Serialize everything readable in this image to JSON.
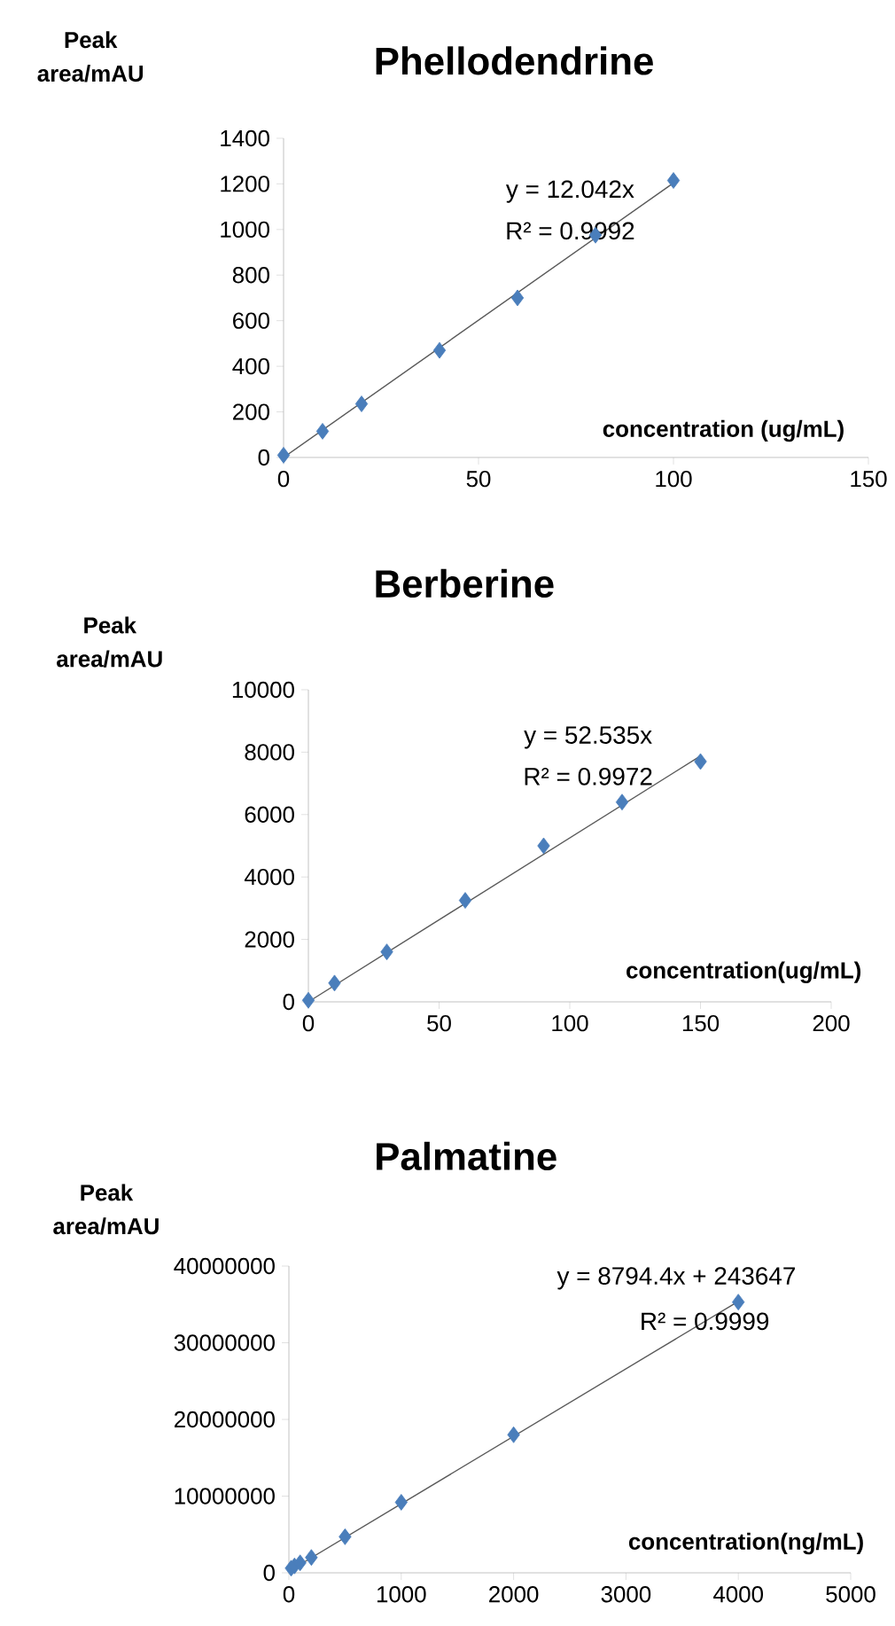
{
  "chart_data": [
    {
      "type": "scatter",
      "title": "Phellodendrine",
      "xlabel": "concentration (ug/mL)",
      "ylabel": "Peak area/mAU",
      "xlim": [
        0,
        150
      ],
      "xticks": [
        0,
        50,
        100,
        150
      ],
      "ylim": [
        0,
        1400
      ],
      "yticks": [
        0,
        200,
        400,
        600,
        800,
        1000,
        1200,
        1400
      ],
      "series": [
        {
          "marker": "diamond",
          "color": "#4a7ebb",
          "x": [
            0,
            10,
            20,
            40,
            60,
            80,
            100
          ],
          "values": [
            10,
            115,
            235,
            470,
            700,
            975,
            1215
          ]
        },
        {
          "type": "line",
          "marker": "none",
          "color": "#595959",
          "line_style": "solid",
          "x": [
            0,
            100
          ],
          "values": [
            0,
            1204
          ]
        }
      ],
      "annotations": [
        "y = 12.042x",
        "R² = 0.9992"
      ]
    },
    {
      "type": "scatter",
      "title": "Berberine",
      "xlabel": "concentration(ug/mL)",
      "ylabel": "Peak area/mAU",
      "xlim": [
        0,
        200
      ],
      "xticks": [
        0,
        50,
        100,
        150,
        200
      ],
      "ylim": [
        0,
        10000
      ],
      "yticks": [
        0,
        2000,
        4000,
        6000,
        8000,
        10000
      ],
      "series": [
        {
          "marker": "diamond",
          "color": "#4a7ebb",
          "x": [
            0,
            10,
            30,
            60,
            90,
            120,
            150
          ],
          "values": [
            50,
            600,
            1600,
            3250,
            5000,
            6400,
            7700
          ]
        },
        {
          "type": "line",
          "marker": "none",
          "color": "#595959",
          "line_style": "solid",
          "x": [
            0,
            150
          ],
          "values": [
            0,
            7880
          ]
        }
      ],
      "annotations": [
        "y = 52.535x",
        "R² = 0.9972"
      ]
    },
    {
      "type": "scatter",
      "title": "Palmatine",
      "xlabel": "concentration(ng/mL)",
      "ylabel": "Peak area/mAU",
      "xlim": [
        0,
        5000
      ],
      "xticks": [
        0,
        1000,
        2000,
        3000,
        4000,
        5000
      ],
      "ylim": [
        0,
        40000000
      ],
      "yticks": [
        0,
        10000000,
        20000000,
        30000000,
        40000000
      ],
      "series": [
        {
          "marker": "diamond",
          "color": "#4a7ebb",
          "x": [
            20,
            50,
            100,
            200,
            500,
            1000,
            2000,
            4000
          ],
          "values": [
            600000,
            900000,
            1300000,
            2000000,
            4700000,
            9200000,
            18000000,
            35300000
          ]
        },
        {
          "type": "line",
          "marker": "none",
          "color": "#595959",
          "line_style": "solid",
          "x": [
            0,
            4000
          ],
          "values": [
            200000,
            35400000
          ]
        }
      ],
      "annotations": [
        "y = 8794.4x + 243647",
        "R² = 0.9999"
      ]
    }
  ]
}
